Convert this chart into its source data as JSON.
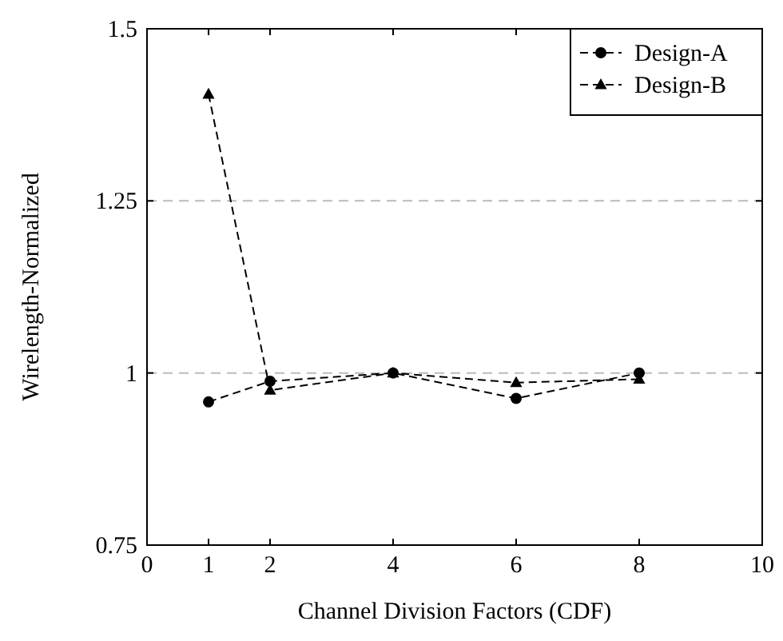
{
  "chart_data": {
    "type": "line",
    "xlabel": "Channel Division Factors (CDF)",
    "ylabel": "Wirelength-Normalized",
    "x": [
      1,
      2,
      4,
      6,
      8
    ],
    "series": [
      {
        "name": "Design-A",
        "color": "#000000",
        "values": [
          0.958,
          0.988,
          1.0,
          0.963,
          1.0
        ],
        "marker": "circle"
      },
      {
        "name": "Design-B",
        "color": "#000000",
        "values": [
          1.405,
          0.975,
          1.0,
          0.986,
          0.991
        ],
        "marker": "triangle"
      }
    ],
    "xlim": [
      0,
      10
    ],
    "xticks": [
      0,
      1,
      2,
      4,
      6,
      8,
      10
    ],
    "ylim": [
      0.75,
      1.5
    ],
    "yticks": [
      0.75,
      1,
      1.25,
      1.5
    ],
    "grid": "y",
    "legend": "top right",
    "line_style": "dashed"
  }
}
